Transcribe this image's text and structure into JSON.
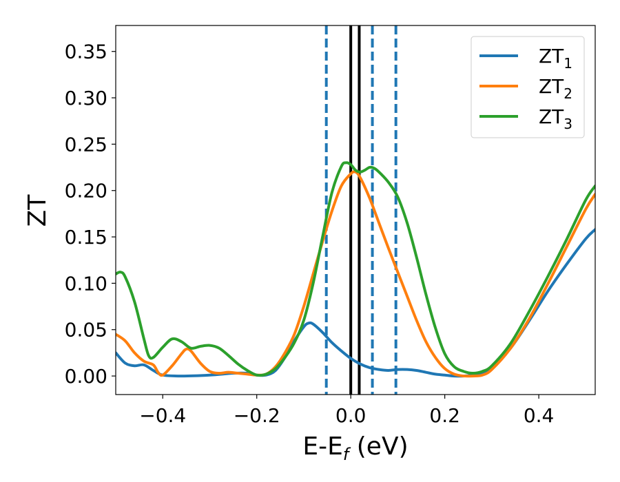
{
  "chart_data": {
    "type": "line",
    "xlabel": "E-E",
    "xlabel_sub": "f",
    "xlabel_unit": " (eV)",
    "ylabel": "ZT",
    "xlim": [
      -0.5,
      0.52
    ],
    "ylim": [
      -0.02,
      0.378
    ],
    "x_ticks": [
      -0.4,
      -0.2,
      0.0,
      0.2,
      0.4
    ],
    "x_tick_labels": [
      "−0.4",
      "−0.2",
      "0.0",
      "0.2",
      "0.4"
    ],
    "y_ticks": [
      0.0,
      0.05,
      0.1,
      0.15,
      0.2,
      0.25,
      0.3,
      0.35
    ],
    "y_tick_labels": [
      "0.00",
      "0.05",
      "0.10",
      "0.15",
      "0.20",
      "0.25",
      "0.30",
      "0.35"
    ],
    "legend_position": "top-right",
    "grid": false,
    "vertical_lines": [
      {
        "x": -0.052,
        "style": "dashed",
        "color": "#1f77b4"
      },
      {
        "x": 0.0,
        "style": "solid",
        "color": "#000000"
      },
      {
        "x": 0.018,
        "style": "solid",
        "color": "#000000"
      },
      {
        "x": 0.046,
        "style": "dashed",
        "color": "#1f77b4"
      },
      {
        "x": 0.096,
        "style": "dashed",
        "color": "#1f77b4"
      }
    ],
    "series": [
      {
        "name": "ZT",
        "name_sub": "1",
        "color": "#1f77b4",
        "x": [
          -0.5,
          -0.48,
          -0.46,
          -0.44,
          -0.42,
          -0.4,
          -0.36,
          -0.3,
          -0.25,
          -0.22,
          -0.2,
          -0.18,
          -0.16,
          -0.14,
          -0.12,
          -0.1,
          -0.09,
          -0.08,
          -0.06,
          -0.04,
          -0.02,
          0.0,
          0.02,
          0.04,
          0.06,
          0.08,
          0.1,
          0.12,
          0.14,
          0.16,
          0.18,
          0.2,
          0.22,
          0.24,
          0.26,
          0.28,
          0.3,
          0.34,
          0.38,
          0.42,
          0.46,
          0.5,
          0.52
        ],
        "y": [
          0.025,
          0.014,
          0.011,
          0.012,
          0.006,
          0.001,
          0.0,
          0.001,
          0.003,
          0.003,
          0.001,
          0.001,
          0.006,
          0.02,
          0.038,
          0.053,
          0.057,
          0.056,
          0.047,
          0.036,
          0.027,
          0.019,
          0.013,
          0.009,
          0.007,
          0.006,
          0.007,
          0.007,
          0.006,
          0.004,
          0.002,
          0.001,
          0.0,
          0.0,
          0.001,
          0.003,
          0.009,
          0.03,
          0.06,
          0.092,
          0.121,
          0.148,
          0.158
        ]
      },
      {
        "name": "ZT",
        "name_sub": "2",
        "color": "#ff7f0e",
        "x": [
          -0.5,
          -0.48,
          -0.46,
          -0.44,
          -0.42,
          -0.41,
          -0.4,
          -0.38,
          -0.36,
          -0.35,
          -0.34,
          -0.32,
          -0.3,
          -0.28,
          -0.26,
          -0.24,
          -0.22,
          -0.2,
          -0.18,
          -0.16,
          -0.14,
          -0.12,
          -0.1,
          -0.08,
          -0.06,
          -0.04,
          -0.02,
          0.0,
          0.01,
          0.02,
          0.04,
          0.06,
          0.08,
          0.1,
          0.12,
          0.14,
          0.16,
          0.18,
          0.2,
          0.22,
          0.24,
          0.26,
          0.28,
          0.3,
          0.34,
          0.38,
          0.42,
          0.46,
          0.5,
          0.52
        ],
        "y": [
          0.045,
          0.038,
          0.025,
          0.016,
          0.012,
          0.004,
          0.001,
          0.011,
          0.024,
          0.029,
          0.027,
          0.014,
          0.005,
          0.003,
          0.004,
          0.003,
          0.002,
          0.001,
          0.002,
          0.01,
          0.025,
          0.045,
          0.075,
          0.11,
          0.145,
          0.178,
          0.205,
          0.218,
          0.22,
          0.214,
          0.192,
          0.165,
          0.138,
          0.112,
          0.086,
          0.06,
          0.037,
          0.02,
          0.008,
          0.002,
          0.0,
          0.0,
          0.001,
          0.007,
          0.03,
          0.062,
          0.1,
          0.14,
          0.18,
          0.196
        ]
      },
      {
        "name": "ZT",
        "name_sub": "3",
        "color": "#2ca02c",
        "x": [
          -0.5,
          -0.49,
          -0.48,
          -0.46,
          -0.44,
          -0.43,
          -0.42,
          -0.4,
          -0.38,
          -0.36,
          -0.34,
          -0.32,
          -0.3,
          -0.28,
          -0.26,
          -0.24,
          -0.22,
          -0.2,
          -0.18,
          -0.16,
          -0.14,
          -0.12,
          -0.1,
          -0.08,
          -0.06,
          -0.04,
          -0.02,
          -0.01,
          0.0,
          0.01,
          0.02,
          0.03,
          0.04,
          0.05,
          0.06,
          0.08,
          0.1,
          0.12,
          0.14,
          0.16,
          0.18,
          0.2,
          0.22,
          0.24,
          0.26,
          0.28,
          0.3,
          0.34,
          0.38,
          0.42,
          0.46,
          0.5,
          0.52
        ],
        "y": [
          0.11,
          0.112,
          0.107,
          0.08,
          0.04,
          0.022,
          0.02,
          0.031,
          0.04,
          0.037,
          0.03,
          0.032,
          0.033,
          0.03,
          0.022,
          0.013,
          0.006,
          0.001,
          0.002,
          0.008,
          0.02,
          0.036,
          0.06,
          0.1,
          0.15,
          0.198,
          0.226,
          0.23,
          0.228,
          0.222,
          0.22,
          0.222,
          0.225,
          0.224,
          0.22,
          0.209,
          0.193,
          0.165,
          0.128,
          0.088,
          0.052,
          0.024,
          0.01,
          0.005,
          0.003,
          0.005,
          0.011,
          0.035,
          0.07,
          0.108,
          0.148,
          0.19,
          0.205
        ]
      }
    ]
  }
}
